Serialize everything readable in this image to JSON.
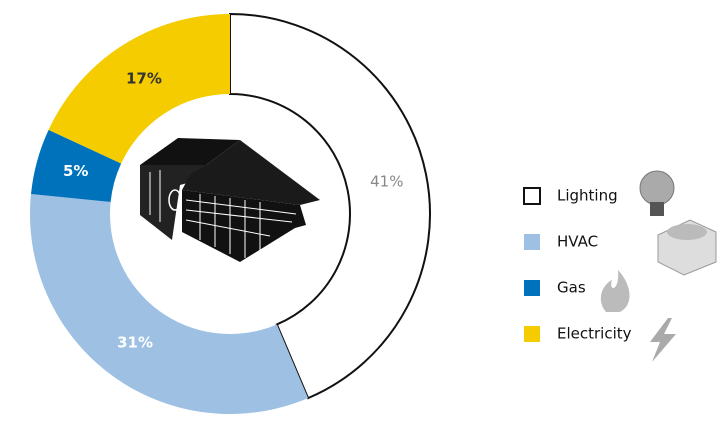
{
  "chart_data": {
    "type": "donut",
    "categories": [
      "Lighting",
      "HVAC",
      "Gas",
      "Electricity"
    ],
    "values": [
      41,
      31,
      5,
      17
    ],
    "value_labels": [
      "41%",
      "31%",
      "5%",
      "17%"
    ],
    "colors": [
      "#ffffff",
      "#9dc0e3",
      "#0072bc",
      "#f5cc00"
    ],
    "legend": "right"
  }
}
